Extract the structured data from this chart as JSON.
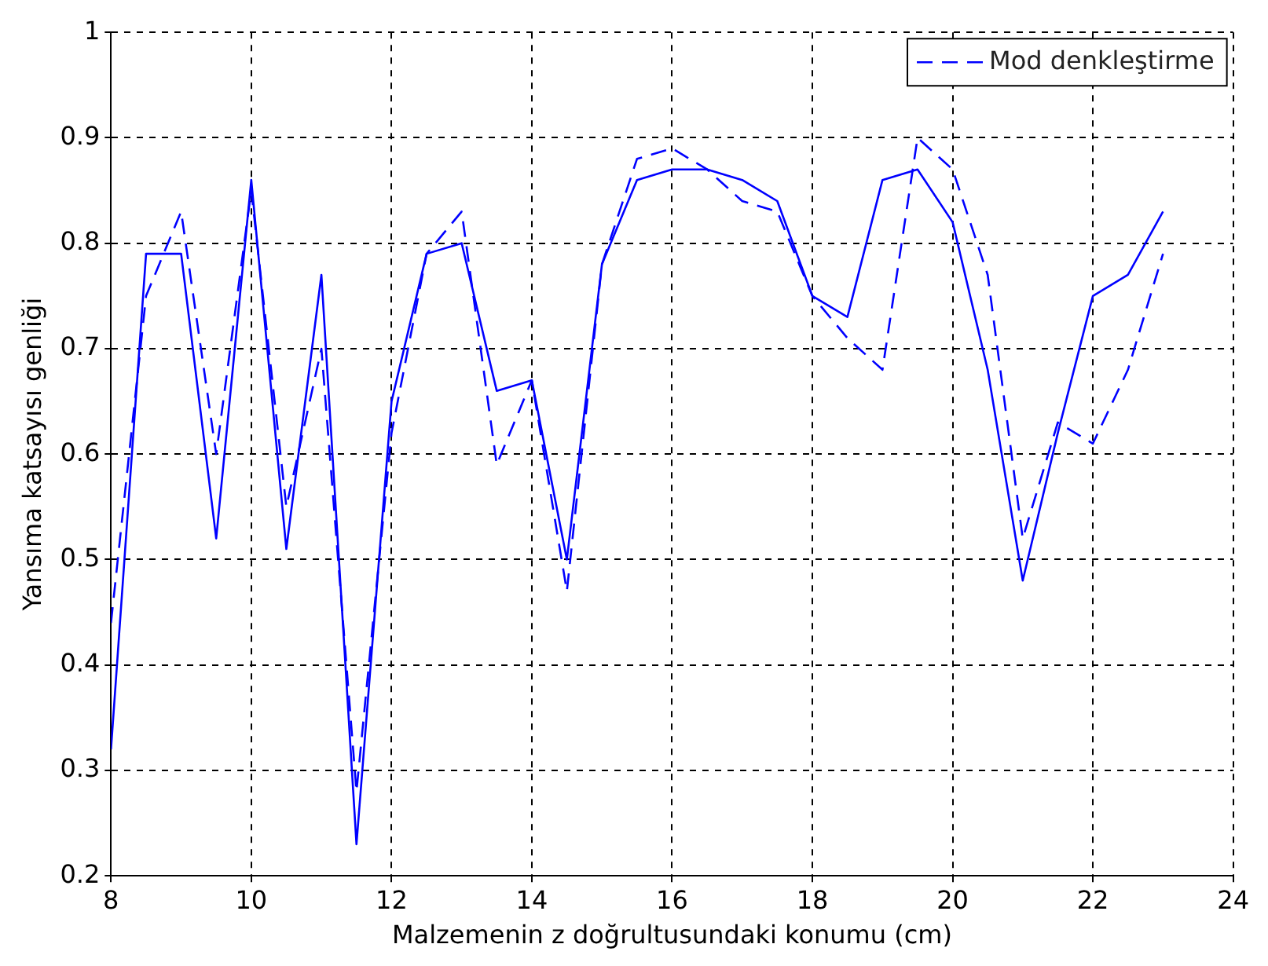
{
  "chart_data": {
    "type": "line",
    "xlabel": "Malzemenin z doğrultusundaki konumu (cm)",
    "ylabel": "Yansıma katsayısı genliği",
    "xlim": [
      8,
      24
    ],
    "xticks": [
      8,
      10,
      12,
      14,
      16,
      18,
      20,
      22,
      24
    ],
    "ylim": [
      0.2,
      1
    ],
    "yticks": [
      0.2,
      0.3,
      0.4,
      0.5,
      0.6,
      0.7,
      0.8,
      0.9,
      1
    ],
    "grid": true,
    "legend": "top right",
    "marker": "none",
    "series": [
      {
        "name": "Mod denkleştirme",
        "color": "#0000ff",
        "line_style": "dashed",
        "x": [
          8,
          8.5,
          9,
          9.5,
          10,
          10.5,
          11,
          11.5,
          12,
          12.5,
          13,
          13.5,
          14,
          14.5,
          15,
          15.5,
          16,
          16.5,
          17,
          17.5,
          18,
          18.5,
          19,
          19.5,
          20,
          20.5,
          21,
          21.5,
          22,
          22.5,
          23
        ],
        "values": [
          0.44,
          0.75,
          0.83,
          0.6,
          0.85,
          0.55,
          0.7,
          0.28,
          0.62,
          0.79,
          0.83,
          0.59,
          0.67,
          0.47,
          0.78,
          0.88,
          0.89,
          0.87,
          0.84,
          0.83,
          0.75,
          0.71,
          0.68,
          0.9,
          0.87,
          0.77,
          0.52,
          0.63,
          0.61,
          0.68,
          0.79
        ]
      },
      {
        "color": "#0000ff",
        "line_style": "solid",
        "x": [
          8,
          8.5,
          9,
          9.5,
          10,
          10.5,
          11,
          11.5,
          12,
          12.5,
          13,
          13.5,
          14,
          14.5,
          15,
          15.5,
          16,
          16.5,
          17,
          17.5,
          18,
          18.5,
          19,
          19.5,
          20,
          20.5,
          21,
          21.5,
          22,
          22.5,
          23
        ],
        "values": [
          0.32,
          0.79,
          0.79,
          0.52,
          0.86,
          0.51,
          0.77,
          0.23,
          0.65,
          0.79,
          0.8,
          0.66,
          0.67,
          0.5,
          0.78,
          0.86,
          0.87,
          0.87,
          0.86,
          0.84,
          0.75,
          0.73,
          0.86,
          0.87,
          0.82,
          0.68,
          0.48,
          0.62,
          0.75,
          0.77,
          0.83
        ]
      }
    ]
  }
}
